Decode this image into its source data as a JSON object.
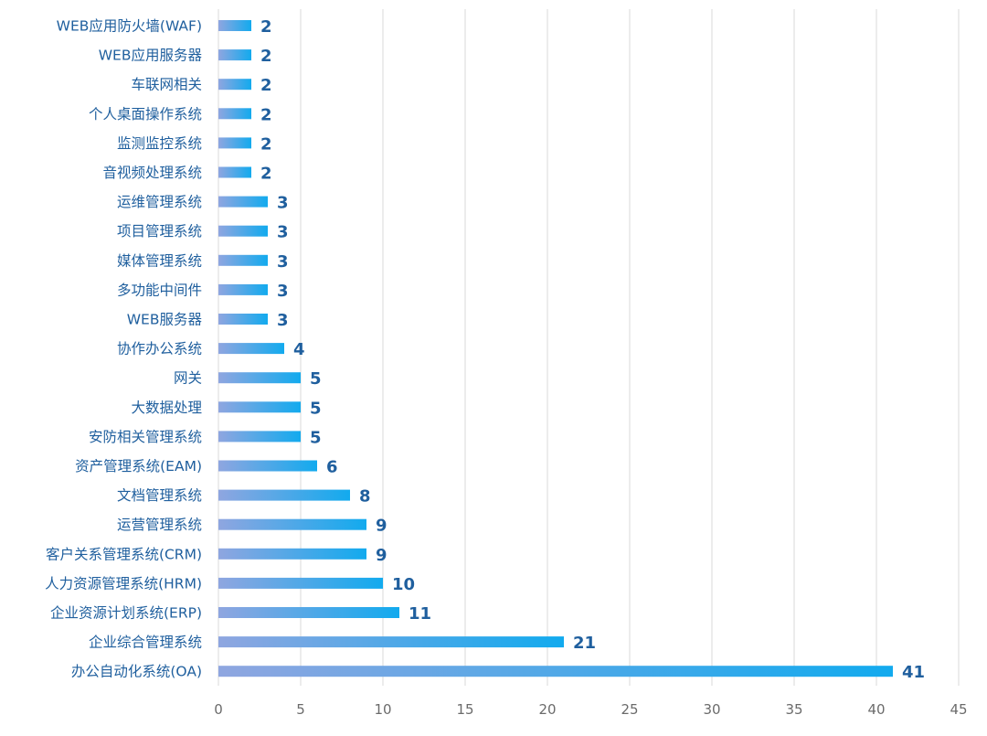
{
  "chart_data": {
    "type": "bar",
    "orientation": "horizontal",
    "categories": [
      "WEB应用防火墙(WAF)",
      "WEB应用服务器",
      "车联网相关",
      "个人桌面操作系统",
      "监测监控系统",
      "音视频处理系统",
      "运维管理系统",
      "项目管理系统",
      "媒体管理系统",
      "多功能中间件",
      "WEB服务器",
      "协作办公系统",
      "网关",
      "大数据处理",
      "安防相关管理系统",
      "资产管理系统(EAM)",
      "文档管理系统",
      "运营管理系统",
      "客户关系管理系统(CRM)",
      "人力资源管理系统(HRM)",
      "企业资源计划系统(ERP)",
      "企业综合管理系统",
      "办公自动化系统(OA)"
    ],
    "values": [
      2,
      2,
      2,
      2,
      2,
      2,
      3,
      3,
      3,
      3,
      3,
      4,
      5,
      5,
      5,
      6,
      8,
      9,
      9,
      10,
      11,
      21,
      41
    ],
    "xlim": [
      0,
      45
    ],
    "xticks": [
      0,
      5,
      10,
      15,
      20,
      25,
      30,
      35,
      40,
      45
    ],
    "grid": "vertical",
    "legend": "none",
    "data_labels": true,
    "colors": {
      "bar_start": "#8fa6e0",
      "bar_end": "#12aaee",
      "label": "#1f5f9e",
      "tick": "#6b6b6b",
      "grid": "#d9d9d9"
    }
  }
}
